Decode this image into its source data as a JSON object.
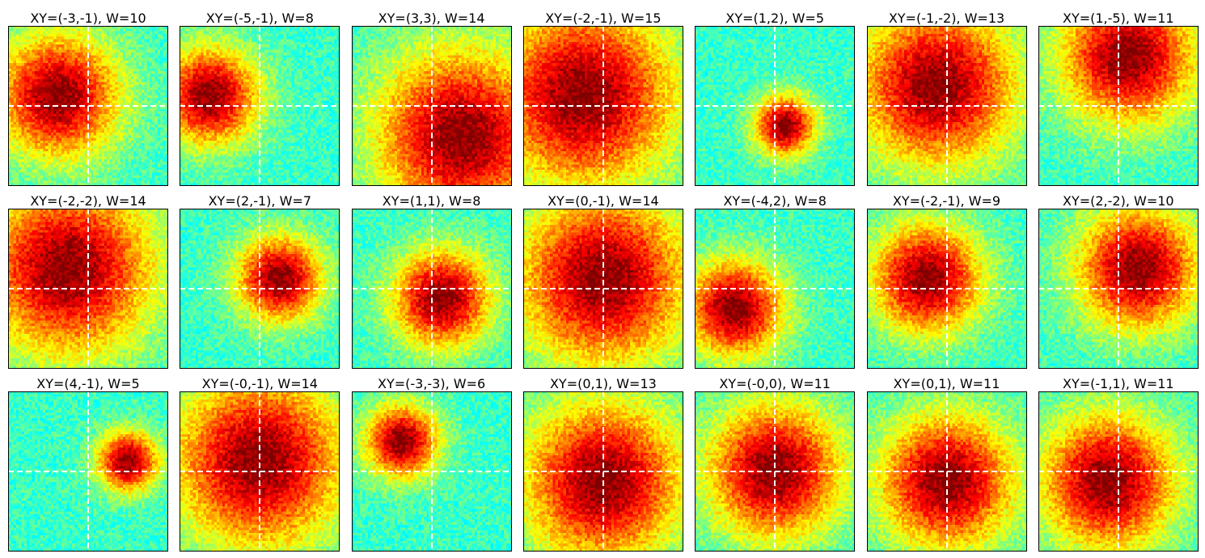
{
  "colormap": [
    "#00007f",
    "#0000ff",
    "#007fff",
    "#00ffff",
    "#7fff7f",
    "#ffff00",
    "#ff7f00",
    "#ff0000",
    "#7f0000"
  ],
  "chart_data": [
    {
      "type": "heatmap",
      "title": "XY=(-3,-1), W=10",
      "x": -3,
      "y": -1,
      "w": 10
    },
    {
      "type": "heatmap",
      "title": "XY=(-5,-1), W=8",
      "x": -5,
      "y": -1,
      "w": 8
    },
    {
      "type": "heatmap",
      "title": "XY=(3,3), W=14",
      "x": 3,
      "y": 3,
      "w": 14
    },
    {
      "type": "heatmap",
      "title": "XY=(-2,-1), W=15",
      "x": -2,
      "y": -1,
      "w": 15
    },
    {
      "type": "heatmap",
      "title": "XY=(1,2), W=5",
      "x": 1,
      "y": 2,
      "w": 5
    },
    {
      "type": "heatmap",
      "title": "XY=(-1,-2), W=13",
      "x": -1,
      "y": -2,
      "w": 13
    },
    {
      "type": "heatmap",
      "title": "XY=(1,-5), W=11",
      "x": 1,
      "y": -5,
      "w": 11
    },
    {
      "type": "heatmap",
      "title": "XY=(-2,-2), W=14",
      "x": -2,
      "y": -2,
      "w": 14
    },
    {
      "type": "heatmap",
      "title": "XY=(2,-1), W=7",
      "x": 2,
      "y": -1,
      "w": 7
    },
    {
      "type": "heatmap",
      "title": "XY=(1,1), W=8",
      "x": 1,
      "y": 1,
      "w": 8
    },
    {
      "type": "heatmap",
      "title": "XY=(0,-1), W=14",
      "x": 0,
      "y": -1,
      "w": 14
    },
    {
      "type": "heatmap",
      "title": "XY=(-4,2), W=8",
      "x": -4,
      "y": 2,
      "w": 8
    },
    {
      "type": "heatmap",
      "title": "XY=(-2,-1), W=9",
      "x": -2,
      "y": -1,
      "w": 9
    },
    {
      "type": "heatmap",
      "title": "XY=(2,-2), W=10",
      "x": 2,
      "y": -2,
      "w": 10
    },
    {
      "type": "heatmap",
      "title": "XY=(4,-1), W=5",
      "x": 4,
      "y": -1,
      "w": 5
    },
    {
      "type": "heatmap",
      "title": "XY=(-0,-1), W=14",
      "x": 0,
      "y": -1,
      "w": 14
    },
    {
      "type": "heatmap",
      "title": "XY=(-3,-3), W=6",
      "x": -3,
      "y": -3,
      "w": 6
    },
    {
      "type": "heatmap",
      "title": "XY=(0,1), W=13",
      "x": 0,
      "y": 1,
      "w": 13
    },
    {
      "type": "heatmap",
      "title": "XY=(-0,0), W=11",
      "x": 0,
      "y": 0,
      "w": 11
    },
    {
      "type": "heatmap",
      "title": "XY=(0,1), W=11",
      "x": 0,
      "y": 1,
      "w": 11
    },
    {
      "type": "heatmap",
      "title": "XY=(-1,1), W=11",
      "x": -1,
      "y": 1,
      "w": 11
    }
  ]
}
